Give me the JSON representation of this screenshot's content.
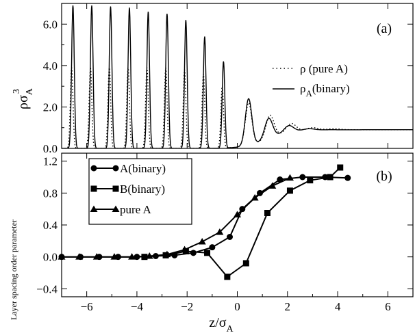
{
  "chart_data": [
    {
      "panel": "(a)",
      "type": "line",
      "xlim": [
        -7,
        7
      ],
      "ylim": [
        0,
        7
      ],
      "yticks": [
        "0.0",
        "2.0",
        "4.0",
        "6.0"
      ],
      "ylabel": {
        "base": "ρσ",
        "sub": "A",
        "sup": "3"
      },
      "legend_position": "right",
      "series": [
        {
          "name": {
            "base": "ρ (pure A)",
            "sub": "",
            "tail": ""
          },
          "style": "dotted",
          "peaks": [
            {
              "x": -6.6,
              "h": 3.9
            },
            {
              "x": -5.85,
              "h": 3.9
            },
            {
              "x": -5.1,
              "h": 3.9
            },
            {
              "x": -4.35,
              "h": 3.9
            },
            {
              "x": -3.6,
              "h": 3.9
            },
            {
              "x": -2.85,
              "h": 3.9
            },
            {
              "x": -2.1,
              "h": 3.8
            },
            {
              "x": -1.35,
              "h": 3.6
            },
            {
              "x": -0.6,
              "h": 3.0
            },
            {
              "x": 0.45,
              "h": 2.2
            },
            {
              "x": 1.3,
              "h": 1.6
            },
            {
              "x": 2.15,
              "h": 1.2
            },
            {
              "x": 3.0,
              "h": 1.0
            },
            {
              "x": 3.85,
              "h": 0.95
            }
          ],
          "baseline": 0.9
        },
        {
          "name": {
            "base": "ρ",
            "sub": "A",
            "tail": "(binary)"
          },
          "style": "solid",
          "peaks": [
            {
              "x": -6.55,
              "h": 6.9
            },
            {
              "x": -5.8,
              "h": 6.9
            },
            {
              "x": -5.05,
              "h": 6.85
            },
            {
              "x": -4.3,
              "h": 6.8
            },
            {
              "x": -3.55,
              "h": 6.6
            },
            {
              "x": -2.8,
              "h": 6.5
            },
            {
              "x": -2.05,
              "h": 6.2
            },
            {
              "x": -1.3,
              "h": 5.4
            },
            {
              "x": -0.55,
              "h": 4.2
            },
            {
              "x": 0.45,
              "h": 2.4
            },
            {
              "x": 1.25,
              "h": 1.45
            },
            {
              "x": 2.05,
              "h": 1.1
            },
            {
              "x": 2.85,
              "h": 0.95
            },
            {
              "x": 3.65,
              "h": 0.9
            }
          ],
          "baseline": 0.9
        }
      ]
    },
    {
      "panel": "(b)",
      "type": "line",
      "xlim": [
        -7,
        7
      ],
      "ylim": [
        -0.5,
        1.3
      ],
      "xticks": [
        "−6",
        "−4",
        "−2",
        "0",
        "2",
        "4",
        "6"
      ],
      "yticks": [
        "−0.4",
        "0.0",
        "0.4",
        "0.8",
        "1.2"
      ],
      "ylabel": "Layer spacing order parameter",
      "xlabel": {
        "base": "z/σ",
        "sub": "A"
      },
      "legend_position": "top-left",
      "series": [
        {
          "name": "A(binary)",
          "marker": "circle",
          "x": [
            -7,
            -6.25,
            -5.5,
            -4.75,
            -4,
            -3.25,
            -2.5,
            -1.75,
            -1,
            -0.3,
            0.2,
            0.9,
            1.7,
            2.6,
            3.5,
            4.4
          ],
          "y": [
            0,
            0,
            0,
            0,
            0,
            0.01,
            0.02,
            0.05,
            0.12,
            0.25,
            0.6,
            0.8,
            0.97,
            1.0,
            1.0,
            0.99
          ]
        },
        {
          "name": "B(binary)",
          "marker": "square",
          "x": [
            -3.7,
            -2.85,
            -2.05,
            -1.2,
            -0.4,
            0.35,
            1.2,
            2.1,
            2.9,
            3.7,
            4.1
          ],
          "y": [
            0,
            0.02,
            0.07,
            0.05,
            -0.25,
            -0.08,
            0.55,
            0.83,
            0.96,
            1.0,
            1.12
          ]
        },
        {
          "name": "pure A",
          "marker": "triangle",
          "x": [
            -7,
            -6.3,
            -5.6,
            -4.9,
            -4.2,
            -3.5,
            -2.8,
            -2.1,
            -1.4,
            -0.7,
            0,
            0.7,
            1.4,
            2.1
          ],
          "y": [
            0,
            0,
            0,
            0,
            0,
            0.01,
            0.03,
            0.09,
            0.19,
            0.31,
            0.53,
            0.74,
            0.89,
            0.99
          ]
        }
      ]
    }
  ]
}
